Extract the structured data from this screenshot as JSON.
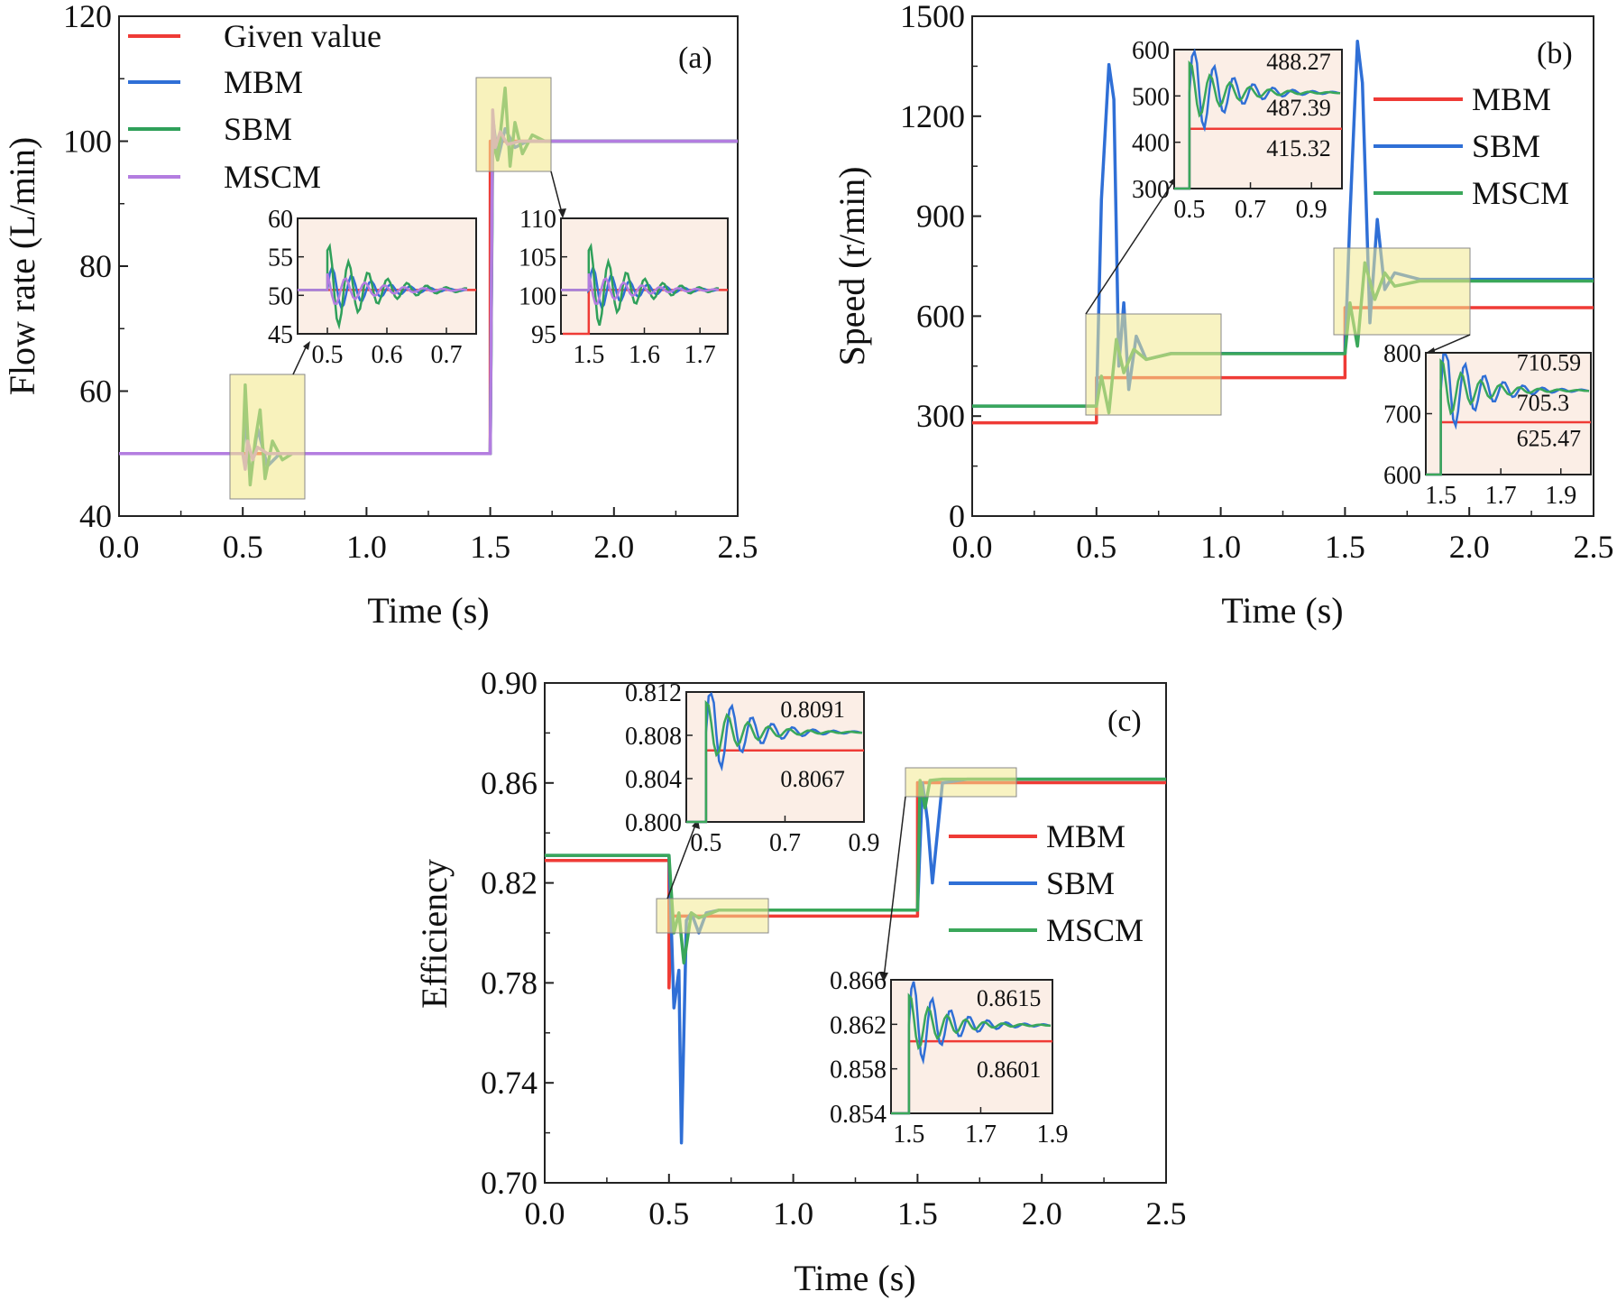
{
  "colors": {
    "given": "#ef3b36",
    "mbm_a": "#2f6fd6",
    "sbm_a": "#2fa05a",
    "mscm": "#b37de0",
    "red": "#ef3b36",
    "blue": "#2f6fd6",
    "green": "#3aa75a",
    "highlight": "#f6efb3",
    "inset_bg": "#fbeee6"
  },
  "chart_data": [
    {
      "type": "line",
      "panel": "(a)",
      "xlabel": "Time (s)",
      "ylabel": "Flow rate (L/min)",
      "xlim": [
        0,
        2.5
      ],
      "ylim": [
        40,
        120
      ],
      "xticks": [
        "0.0",
        "0.5",
        "1.0",
        "1.5",
        "2.0",
        "2.5"
      ],
      "yticks": [
        "40",
        "60",
        "80",
        "100",
        "120"
      ],
      "legend": [
        "Given value",
        "MBM",
        "SBM",
        "MSCM"
      ],
      "series": [
        {
          "name": "Given value",
          "x": [
            0,
            1.5,
            1.5,
            2.5
          ],
          "y": [
            50,
            50,
            100,
            100
          ]
        },
        {
          "name": "MBM",
          "x": [
            0,
            0.5,
            0.51,
            0.53,
            0.56,
            0.6,
            0.65,
            1.5,
            1.51,
            1.53,
            1.56,
            1.6,
            1.65,
            2.5
          ],
          "y": [
            50,
            50,
            56,
            46,
            54,
            48,
            50,
            50,
            104,
            97,
            102,
            99,
            100,
            100
          ]
        },
        {
          "name": "SBM",
          "x": [
            0,
            0.5,
            0.51,
            0.53,
            0.55,
            0.57,
            0.59,
            0.62,
            0.66,
            0.7,
            1.5,
            1.51,
            1.53,
            1.56,
            1.58,
            1.6,
            1.63,
            1.67,
            1.72,
            2.5
          ],
          "y": [
            50,
            50,
            61,
            45,
            52,
            57,
            46,
            52,
            49,
            50,
            50,
            100,
            97,
            108.5,
            96,
            103,
            98,
            101,
            100,
            100
          ]
        },
        {
          "name": "MSCM",
          "x": [
            0,
            0.5,
            0.51,
            0.52,
            0.54,
            0.56,
            0.6,
            1.5,
            1.51,
            1.52,
            1.54,
            1.57,
            1.62,
            2.5
          ],
          "y": [
            50,
            50,
            47.5,
            52,
            49,
            51,
            50,
            50,
            105,
            99,
            101.5,
            99.5,
            100,
            100
          ]
        }
      ],
      "insets": [
        {
          "xlim": [
            0.45,
            0.75
          ],
          "yticks": [
            "45",
            "50",
            "55",
            "60"
          ],
          "xticks": [
            "0.5",
            "0.6",
            "0.7"
          ]
        },
        {
          "xlim": [
            1.45,
            1.75
          ],
          "yticks": [
            "95",
            "100",
            "105",
            "110"
          ],
          "xticks": [
            "1.5",
            "1.6",
            "1.7"
          ]
        }
      ]
    },
    {
      "type": "line",
      "panel": "(b)",
      "xlabel": "Time (s)",
      "ylabel": "Speed (r/min)",
      "xlim": [
        0,
        2.5
      ],
      "ylim": [
        0,
        1500
      ],
      "xticks": [
        "0.0",
        "0.5",
        "1.0",
        "1.5",
        "2.0",
        "2.5"
      ],
      "yticks": [
        "0",
        "300",
        "600",
        "900",
        "1200",
        "1500"
      ],
      "legend": [
        "MBM",
        "SBM",
        "MSCM"
      ],
      "series": [
        {
          "name": "MBM",
          "x": [
            0,
            0.5,
            0.5,
            1.5,
            1.5,
            2.5
          ],
          "y": [
            280,
            280,
            415.32,
            415.32,
            625.47,
            625.47
          ]
        },
        {
          "name": "SBM",
          "x": [
            0,
            0.5,
            0.52,
            0.55,
            0.57,
            0.59,
            0.61,
            0.63,
            0.66,
            0.7,
            0.8,
            1.5,
            1.52,
            1.55,
            1.57,
            1.6,
            1.63,
            1.66,
            1.7,
            1.8,
            2.5
          ],
          "y": [
            330,
            330,
            950,
            1355,
            1250,
            450,
            640,
            380,
            540,
            470,
            488.27,
            488.27,
            900,
            1425,
            1300,
            580,
            890,
            680,
            730,
            710.59,
            710.59
          ]
        },
        {
          "name": "MSCM",
          "x": [
            0,
            0.5,
            0.52,
            0.55,
            0.58,
            0.61,
            0.65,
            0.7,
            0.8,
            1.5,
            1.52,
            1.55,
            1.58,
            1.62,
            1.66,
            1.7,
            1.8,
            2.5
          ],
          "y": [
            330,
            330,
            420,
            310,
            530,
            430,
            500,
            470,
            487.39,
            487.39,
            640,
            510,
            760,
            650,
            730,
            690,
            705.3,
            705.3
          ]
        }
      ],
      "insets": [
        {
          "xlim": [
            0.45,
            1.0
          ],
          "yticks": [
            "300",
            "400",
            "500",
            "600"
          ],
          "xticks": [
            "0.5",
            "0.7",
            "0.9"
          ],
          "annotations": [
            "488.27",
            "487.39",
            "415.32"
          ]
        },
        {
          "xlim": [
            1.45,
            2.0
          ],
          "yticks": [
            "600",
            "700",
            "800"
          ],
          "xticks": [
            "1.5",
            "1.7",
            "1.9"
          ],
          "annotations": [
            "710.59",
            "705.3",
            "625.47"
          ]
        }
      ]
    },
    {
      "type": "line",
      "panel": "(c)",
      "xlabel": "Time (s)",
      "ylabel": "Efficiency",
      "xlim": [
        0,
        2.5
      ],
      "ylim": [
        0.7,
        0.9
      ],
      "xticks": [
        "0.0",
        "0.5",
        "1.0",
        "1.5",
        "2.0",
        "2.5"
      ],
      "yticks": [
        "0.70",
        "0.74",
        "0.78",
        "0.82",
        "0.86",
        "0.90"
      ],
      "legend": [
        "MBM",
        "SBM",
        "MSCM"
      ],
      "series": [
        {
          "name": "MBM",
          "x": [
            0,
            0.5,
            0.5,
            0.51,
            1.5,
            1.5,
            2.5
          ],
          "y": [
            0.829,
            0.829,
            0.778,
            0.8067,
            0.8067,
            0.8601,
            0.8601
          ]
        },
        {
          "name": "SBM",
          "x": [
            0,
            0.5,
            0.52,
            0.54,
            0.55,
            0.57,
            0.59,
            0.62,
            0.65,
            0.7,
            1.5,
            1.52,
            1.54,
            1.56,
            1.6,
            1.7,
            2.5
          ],
          "y": [
            0.831,
            0.831,
            0.77,
            0.785,
            0.716,
            0.805,
            0.808,
            0.8,
            0.808,
            0.8091,
            0.8091,
            0.86,
            0.845,
            0.82,
            0.86,
            0.8615,
            0.8615
          ]
        },
        {
          "name": "MSCM",
          "x": [
            0,
            0.5,
            0.52,
            0.54,
            0.56,
            0.59,
            0.62,
            0.7,
            1.5,
            1.51,
            1.53,
            1.55,
            1.6,
            2.5
          ],
          "y": [
            0.831,
            0.831,
            0.8,
            0.808,
            0.788,
            0.808,
            0.806,
            0.8091,
            0.8091,
            0.861,
            0.85,
            0.861,
            0.8615,
            0.8615
          ]
        }
      ],
      "insets": [
        {
          "xlim": [
            0.45,
            0.9
          ],
          "yticks": [
            "0.800",
            "0.804",
            "0.808",
            "0.812"
          ],
          "xticks": [
            "0.5",
            "0.7",
            "0.9"
          ],
          "annotations": [
            "0.8091",
            "0.8067"
          ]
        },
        {
          "xlim": [
            1.45,
            1.9
          ],
          "yticks": [
            "0.854",
            "0.858",
            "0.862",
            "0.866"
          ],
          "xticks": [
            "1.5",
            "1.7",
            "1.9"
          ],
          "annotations": [
            "0.8615",
            "0.8601"
          ]
        }
      ]
    }
  ]
}
